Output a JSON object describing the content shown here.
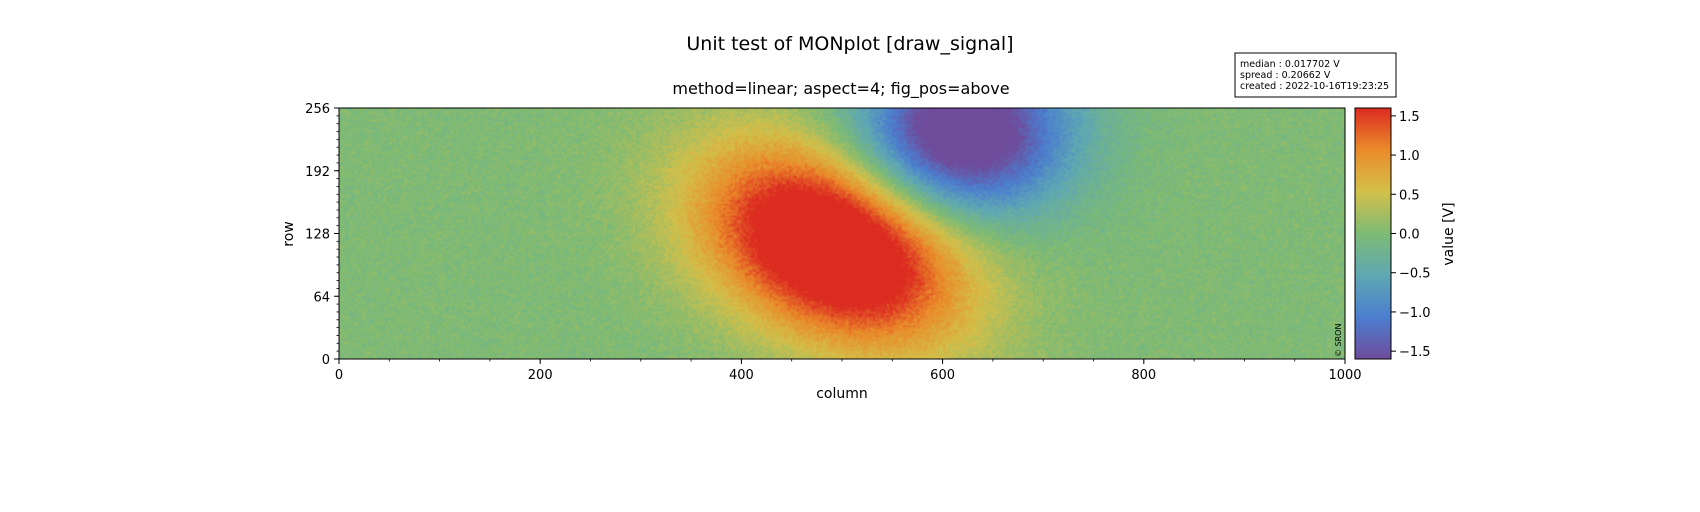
{
  "title": "Unit test of MONplot [draw_signal]",
  "chart_data": {
    "type": "heatmap",
    "title": "method=linear; aspect=4; fig_pos=above",
    "xlabel": "column",
    "ylabel": "row",
    "xlim": [
      0,
      1000
    ],
    "ylim": [
      0,
      256
    ],
    "x_ticks": [
      0,
      200,
      400,
      600,
      800,
      1000
    ],
    "y_ticks": [
      0,
      64,
      128,
      192,
      256
    ],
    "colorbar": {
      "label": "value [V]",
      "vmin": -1.6,
      "vmax": 1.6,
      "ticks": [
        -1.5,
        -1.0,
        -0.5,
        0.0,
        0.5,
        1.0,
        1.5
      ],
      "tick_labels": [
        "−1.5",
        "−1.0",
        "−0.5",
        "0.0",
        "0.5",
        "1.0",
        "1.5"
      ],
      "colors": [
        "#6f4c9b",
        "#4b7ecf",
        "#5fa8b3",
        "#7dbb74",
        "#d3c04a",
        "#ea8b2a",
        "#dc2b21"
      ]
    },
    "features": [
      {
        "kind": "positive peak",
        "center_column": 490,
        "center_row": 115,
        "peak_value": 1.6
      },
      {
        "kind": "negative trough",
        "center_column": 620,
        "center_row": 230,
        "peak_value": -1.6
      }
    ],
    "background_value": 0.0,
    "stats_box": {
      "median": "median : 0.017702 V",
      "spread": "spread : 0.20662 V",
      "created": "created : 2022-10-16T19:23:25"
    },
    "copyright": "© SRON"
  }
}
